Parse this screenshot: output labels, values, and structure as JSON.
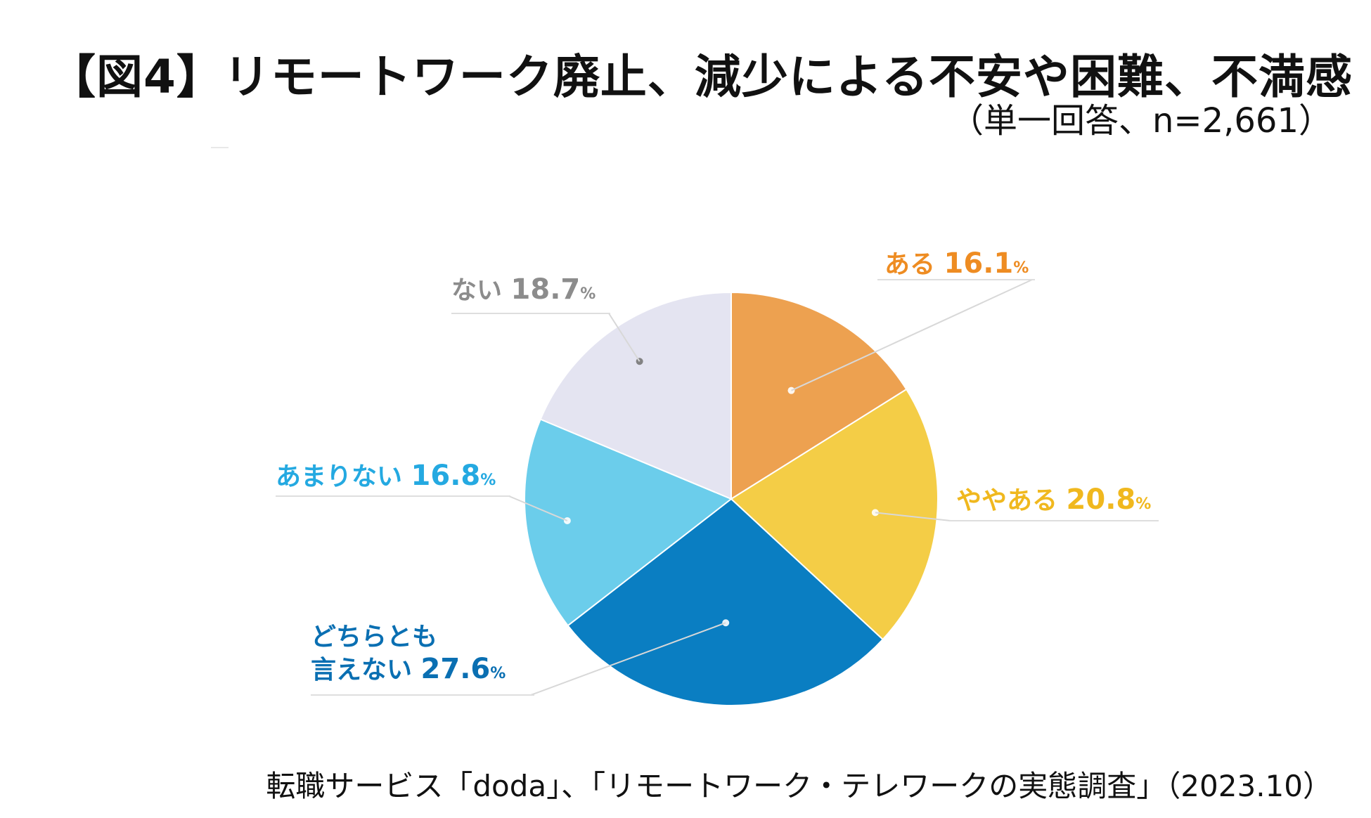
{
  "header": {
    "title": "【図4】リモートワーク廃止、減少による不安や困難、不満感",
    "subtitle": "（単一回答、n=2,661）"
  },
  "footer": {
    "source": "転職サービス「doda」、「リモートワーク・テレワークの実態調査」（2023.10）"
  },
  "chart_data": {
    "type": "pie",
    "title": "【図4】リモートワーク廃止、減少による不安や困難、不満感",
    "subtitle": "（単一回答、n=2,661）",
    "unit": "%",
    "start_angle": "12 o'clock",
    "direction": "clockwise",
    "slices": [
      {
        "label": "ある",
        "value": 16.1,
        "color": "#EDA150"
      },
      {
        "label": "ややある",
        "value": 20.8,
        "color": "#F4CD46"
      },
      {
        "label": "どちらとも言えない",
        "label_lines": [
          "どちらとも",
          "言えない"
        ],
        "value": 27.6,
        "color": "#0A7EC2"
      },
      {
        "label": "あまりない",
        "value": 16.8,
        "color": "#6BCDEB"
      },
      {
        "label": "ない",
        "value": 18.7,
        "color": "#E4E4F1"
      }
    ],
    "label_colors": [
      "#EE8C22",
      "#F0B81E",
      "#0A6FB2",
      "#24A9E1",
      "#8C8C8C"
    ]
  }
}
